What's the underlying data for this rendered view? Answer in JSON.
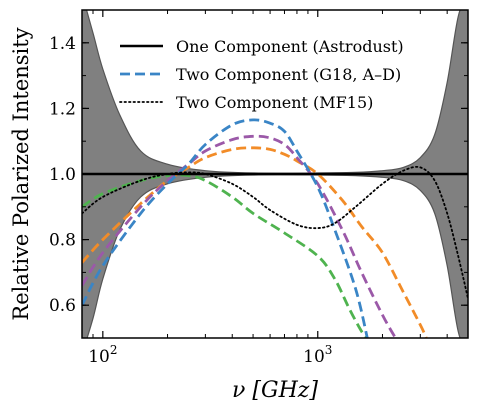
{
  "chart_data": {
    "type": "line",
    "xlabel": "ν [GHz]",
    "ylabel": "Relative Polarized Intensity",
    "xscale": "log",
    "xlim": [
      80,
      5000
    ],
    "ylim": [
      0.5,
      1.5
    ],
    "xticks": [
      {
        "value": 100,
        "label": "10",
        "exp": "2"
      },
      {
        "value": 1000,
        "label": "10",
        "exp": "3"
      }
    ],
    "yticks": [
      0.6,
      0.8,
      1.0,
      1.2,
      1.4
    ],
    "ytick_labels": [
      "0.6",
      "0.8",
      "1.0",
      "1.2",
      "1.4"
    ],
    "legend": {
      "placement": "top-center",
      "entries": [
        {
          "label": "One Component (Astrodust)",
          "style": "solid",
          "color": "#000000"
        },
        {
          "label": "Two Component (G18, A–D)",
          "style": "dashed",
          "color": "#3a85c6"
        },
        {
          "label": "Two Component (MF15)",
          "style": "dotted",
          "color": "#000000"
        }
      ]
    },
    "band": {
      "color": "#808080",
      "upper": [
        [
          80,
          1.55
        ],
        [
          90,
          1.43
        ],
        [
          100,
          1.32
        ],
        [
          120,
          1.18
        ],
        [
          150,
          1.07
        ],
        [
          200,
          1.03
        ],
        [
          300,
          1.01
        ],
        [
          500,
          1.003
        ],
        [
          1000,
          1.003
        ],
        [
          1500,
          1.005
        ],
        [
          2000,
          1.01
        ],
        [
          2500,
          1.02
        ],
        [
          3000,
          1.05
        ],
        [
          3500,
          1.12
        ],
        [
          4000,
          1.28
        ],
        [
          4500,
          1.48
        ],
        [
          5000,
          1.55
        ]
      ],
      "lower": [
        [
          80,
          0.45
        ],
        [
          90,
          0.56
        ],
        [
          100,
          0.68
        ],
        [
          120,
          0.83
        ],
        [
          150,
          0.93
        ],
        [
          200,
          0.97
        ],
        [
          300,
          0.99
        ],
        [
          500,
          0.997
        ],
        [
          1000,
          0.997
        ],
        [
          1500,
          0.995
        ],
        [
          2000,
          0.99
        ],
        [
          2500,
          0.98
        ],
        [
          3000,
          0.95
        ],
        [
          3500,
          0.88
        ],
        [
          4000,
          0.72
        ],
        [
          4500,
          0.52
        ],
        [
          5000,
          0.45
        ]
      ]
    },
    "series": [
      {
        "style": "solid",
        "color": "#000000",
        "points": [
          [
            80,
            1.0
          ],
          [
            5000,
            1.0
          ]
        ]
      },
      {
        "style": "dashed",
        "color": "#3a85c6",
        "points": [
          [
            80,
            0.6
          ],
          [
            100,
            0.72
          ],
          [
            150,
            0.88
          ],
          [
            200,
            0.97
          ],
          [
            250,
            1.03
          ],
          [
            300,
            1.09
          ],
          [
            400,
            1.15
          ],
          [
            500,
            1.165
          ],
          [
            600,
            1.155
          ],
          [
            700,
            1.13
          ],
          [
            800,
            1.07
          ],
          [
            1000,
            0.96
          ],
          [
            1200,
            0.83
          ],
          [
            1500,
            0.65
          ],
          [
            1700,
            0.5
          ]
        ]
      },
      {
        "style": "dashed",
        "color": "#9b59a8",
        "points": [
          [
            80,
            0.66
          ],
          [
            100,
            0.76
          ],
          [
            150,
            0.9
          ],
          [
            200,
            0.98
          ],
          [
            250,
            1.03
          ],
          [
            300,
            1.07
          ],
          [
            400,
            1.105
          ],
          [
            500,
            1.115
          ],
          [
            600,
            1.11
          ],
          [
            700,
            1.09
          ],
          [
            800,
            1.05
          ],
          [
            1000,
            0.97
          ],
          [
            1300,
            0.83
          ],
          [
            1600,
            0.7
          ],
          [
            2000,
            0.57
          ],
          [
            2300,
            0.5
          ]
        ]
      },
      {
        "style": "dashed",
        "color": "#f28c28",
        "points": [
          [
            80,
            0.73
          ],
          [
            100,
            0.8
          ],
          [
            150,
            0.91
          ],
          [
            200,
            0.98
          ],
          [
            250,
            1.02
          ],
          [
            300,
            1.05
          ],
          [
            400,
            1.075
          ],
          [
            500,
            1.08
          ],
          [
            600,
            1.075
          ],
          [
            700,
            1.06
          ],
          [
            800,
            1.04
          ],
          [
            1000,
            1.0
          ],
          [
            1300,
            0.92
          ],
          [
            1600,
            0.84
          ],
          [
            2000,
            0.76
          ],
          [
            2500,
            0.64
          ],
          [
            3000,
            0.54
          ],
          [
            3200,
            0.5
          ]
        ]
      },
      {
        "style": "dashed",
        "color": "#4fb34f",
        "points": [
          [
            80,
            0.9
          ],
          [
            100,
            0.94
          ],
          [
            150,
            0.98
          ],
          [
            200,
            0.995
          ],
          [
            250,
            0.995
          ],
          [
            300,
            0.98
          ],
          [
            400,
            0.93
          ],
          [
            500,
            0.88
          ],
          [
            700,
            0.82
          ],
          [
            1000,
            0.75
          ],
          [
            1200,
            0.68
          ],
          [
            1400,
            0.59
          ],
          [
            1600,
            0.52
          ],
          [
            1700,
            0.5
          ]
        ]
      },
      {
        "style": "dotted",
        "color": "#000000",
        "points": [
          [
            80,
            0.88
          ],
          [
            100,
            0.93
          ],
          [
            150,
            0.98
          ],
          [
            200,
            1.0
          ],
          [
            250,
            1.005
          ],
          [
            300,
            1.0
          ],
          [
            400,
            0.97
          ],
          [
            500,
            0.93
          ],
          [
            600,
            0.89
          ],
          [
            800,
            0.845
          ],
          [
            1000,
            0.835
          ],
          [
            1200,
            0.85
          ],
          [
            1500,
            0.9
          ],
          [
            2000,
            0.97
          ],
          [
            2500,
            1.01
          ],
          [
            3000,
            1.02
          ],
          [
            3500,
            0.98
          ],
          [
            4000,
            0.88
          ],
          [
            4500,
            0.75
          ],
          [
            5000,
            0.62
          ]
        ]
      }
    ]
  }
}
